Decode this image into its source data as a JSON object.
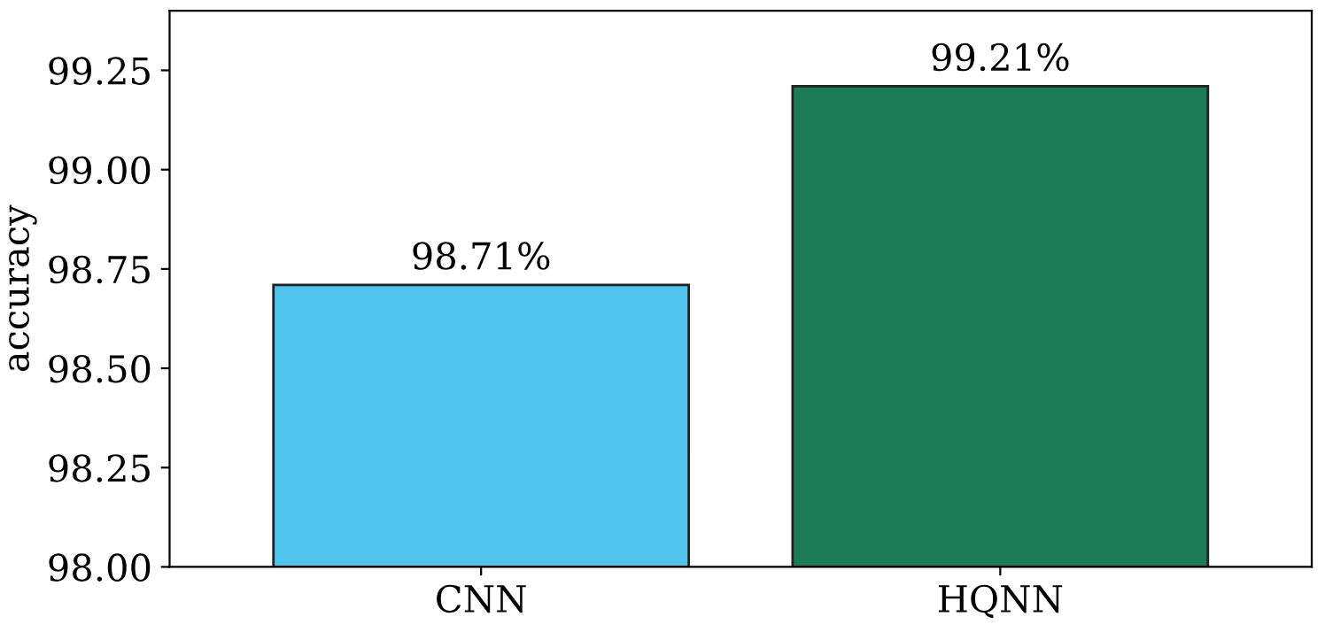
{
  "chart_data": {
    "type": "bar",
    "ylabel": "accuracy",
    "categories": [
      "CNN",
      "HQNN"
    ],
    "values": [
      98.71,
      99.21
    ],
    "colors": [
      "#4fc3ec",
      "#1b7b58"
    ],
    "value_labels": [
      "98.71%",
      "99.21%"
    ],
    "ylim": [
      98.0,
      99.4
    ],
    "yticks": [
      {
        "value": 98.0,
        "label": "98.00"
      },
      {
        "value": 98.25,
        "label": "98.25"
      },
      {
        "value": 98.5,
        "label": "98.50"
      },
      {
        "value": 98.75,
        "label": "98.75"
      },
      {
        "value": 99.0,
        "label": "99.00"
      },
      {
        "value": 99.25,
        "label": "99.25"
      }
    ],
    "grid": false
  }
}
